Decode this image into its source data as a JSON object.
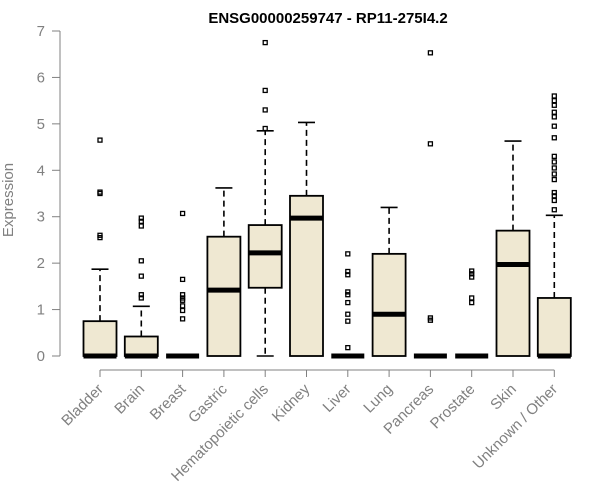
{
  "chart_data": {
    "type": "boxplot",
    "title": "ENSG00000259747 - RP11-275I4.2",
    "ylabel": "Expression",
    "xlabel": "",
    "ylim": [
      0,
      7
    ],
    "yticks": [
      0,
      1,
      2,
      3,
      4,
      5,
      6,
      7
    ],
    "grid": false,
    "colors": {
      "box_fill": "#efe8d2",
      "stroke": "#000000",
      "axis": "#808080"
    },
    "categories": [
      "Bladder",
      "Brain",
      "Breast",
      "Gastric",
      "Hematopoietic cells",
      "Kidney",
      "Liver",
      "Lung",
      "Pancreas",
      "Prostate",
      "Skin",
      "Unknown / Other"
    ],
    "boxes": [
      {
        "category": "Bladder",
        "min": 0,
        "q1": 0,
        "median": 0,
        "q3": 0.75,
        "max": 1.87,
        "outliers": [
          2.55,
          2.6,
          3.5,
          3.53,
          4.65
        ]
      },
      {
        "category": "Brain",
        "min": 0,
        "q1": 0,
        "median": 0,
        "q3": 0.42,
        "max": 1.07,
        "outliers": [
          1.25,
          1.32,
          1.72,
          2.05,
          2.8,
          2.9,
          2.97
        ]
      },
      {
        "category": "Breast",
        "min": 0,
        "q1": 0,
        "median": 0,
        "q3": 0,
        "max": 0,
        "outliers": [
          0.8,
          0.98,
          1.08,
          1.2,
          1.25,
          1.32,
          1.65,
          3.07
        ]
      },
      {
        "category": "Gastric",
        "min": 0,
        "q1": 0,
        "median": 1.42,
        "q3": 2.57,
        "max": 3.62,
        "outliers": []
      },
      {
        "category": "Hematopoietic cells",
        "min": 0,
        "q1": 1.47,
        "median": 2.22,
        "q3": 2.82,
        "max": 4.85,
        "outliers": [
          4.9,
          5.3,
          5.72,
          6.75
        ]
      },
      {
        "category": "Kidney",
        "min": 0,
        "q1": 0,
        "median": 2.97,
        "q3": 3.45,
        "max": 5.03,
        "outliers": []
      },
      {
        "category": "Liver",
        "min": 0,
        "q1": 0,
        "median": 0,
        "q3": 0,
        "max": 0,
        "outliers": [
          0.18,
          0.75,
          0.9,
          1.15,
          1.32,
          1.38,
          1.75,
          1.82,
          2.2
        ]
      },
      {
        "category": "Lung",
        "min": 0,
        "q1": 0,
        "median": 0.9,
        "q3": 2.2,
        "max": 3.2,
        "outliers": []
      },
      {
        "category": "Pancreas",
        "min": 0,
        "q1": 0,
        "median": 0,
        "q3": 0,
        "max": 0,
        "outliers": [
          0.77,
          0.82,
          4.57,
          6.53
        ]
      },
      {
        "category": "Prostate",
        "min": 0,
        "q1": 0,
        "median": 0,
        "q3": 0,
        "max": 0,
        "outliers": [
          1.15,
          1.25,
          1.7,
          1.77,
          1.83
        ]
      },
      {
        "category": "Skin",
        "min": 0,
        "q1": 0,
        "median": 1.97,
        "q3": 2.7,
        "max": 4.63,
        "outliers": []
      },
      {
        "category": "Unknown / Other",
        "min": 0,
        "q1": 0,
        "median": 0,
        "q3": 1.25,
        "max": 3.03,
        "outliers": [
          3.15,
          3.35,
          3.45,
          3.52,
          3.8,
          3.92,
          4.05,
          4.18,
          4.3,
          4.7,
          4.95,
          5.15,
          5.25,
          5.4,
          5.5,
          5.6
        ]
      }
    ]
  }
}
